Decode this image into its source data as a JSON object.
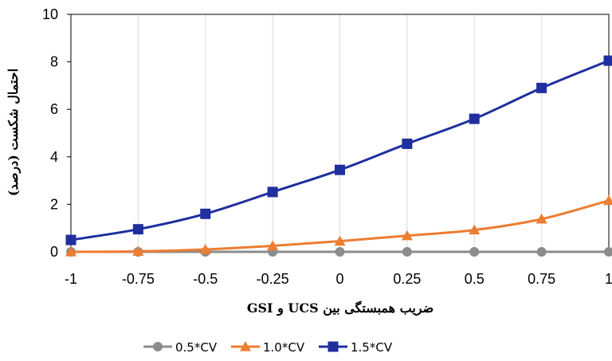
{
  "chart_data": {
    "type": "line",
    "title": "",
    "xlabel": "ضریب همبستگی بین UCS و GSI",
    "ylabel": "احتمال شکست (درصد)",
    "x": [
      -1,
      -0.75,
      -0.5,
      -0.25,
      0,
      0.25,
      0.5,
      0.75,
      1
    ],
    "x_tick_labels": [
      "-1",
      "-0.75",
      "-0.5",
      "-0.25",
      "0",
      "0.25",
      "0.5",
      "0.75",
      "1"
    ],
    "xlim": [
      -1,
      1
    ],
    "ylim": [
      0,
      10
    ],
    "y_ticks": [
      0,
      2,
      4,
      6,
      8,
      10
    ],
    "y_tick_labels": [
      "0",
      "2",
      "4",
      "6",
      "8",
      "10"
    ],
    "grid": "vertical",
    "legend_position": "bottom",
    "series": [
      {
        "name": "0.5*CV",
        "color": "#8C8C8C",
        "marker": "circle",
        "values": [
          0,
          0,
          0,
          0,
          0,
          0,
          0,
          0,
          0
        ]
      },
      {
        "name": "1.0*CV",
        "color": "#ED7D31",
        "marker": "triangle",
        "values": [
          0,
          0.02,
          0.1,
          0.25,
          0.45,
          0.68,
          0.92,
          1.38,
          2.16
        ]
      },
      {
        "name": "1.5*CV",
        "color": "#1F2F9E",
        "marker": "square",
        "values": [
          0.5,
          0.95,
          1.6,
          2.52,
          3.45,
          4.55,
          5.6,
          6.9,
          8.05
        ]
      }
    ]
  }
}
